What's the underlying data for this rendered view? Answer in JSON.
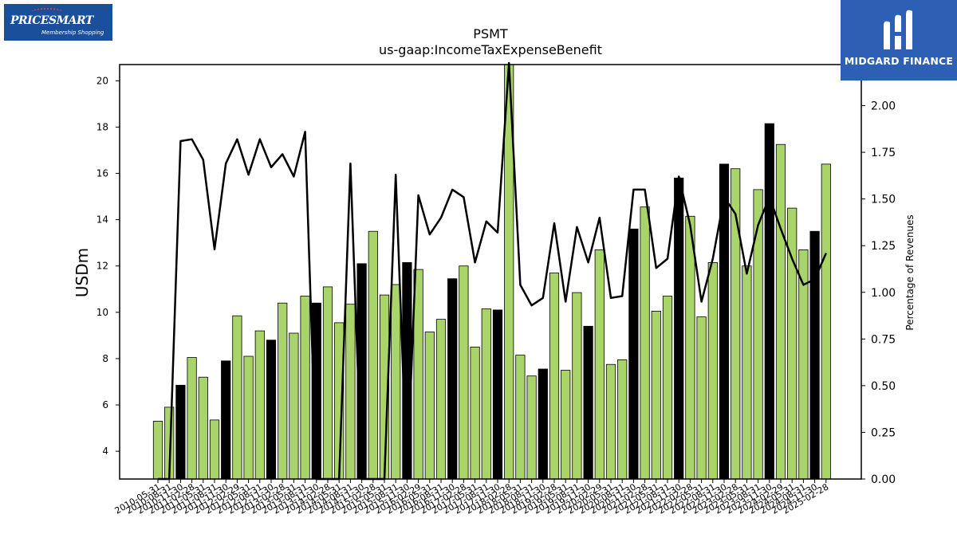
{
  "logos": {
    "left": {
      "brand": "PRICESMART",
      "tagline": "Membership Shopping",
      "colors": {
        "bg": "#1a4f9c",
        "dots": "#e23b3b"
      }
    },
    "right": {
      "name": "MIDGARD FINANCE",
      "icon": "midgard-m-icon",
      "colors": {
        "bg": "#2d5fb5"
      }
    }
  },
  "chart_data": {
    "type": "bar",
    "title": "PSMT",
    "subtitle": "us-gaap:IncomeTaxExpenseBenefit",
    "ylabel": "USDm",
    "y2label": "Percentage of Revenues",
    "ylim": [
      2.8,
      20.7
    ],
    "y2lim": [
      0,
      2.22
    ],
    "yticks": [
      4,
      6,
      8,
      10,
      12,
      14,
      16,
      18,
      20
    ],
    "y2ticks": [
      "0.00",
      "0.25",
      "0.50",
      "0.75",
      "1.00",
      "1.25",
      "1.50",
      "1.75",
      "2.00"
    ],
    "grid": false,
    "colors": {
      "bar": "#a8d46a",
      "bar_highlight": "#000000",
      "line": "#000000"
    },
    "categories": [
      "2010-05-31",
      "2010-08-31",
      "2010-11-30",
      "2011-02-28",
      "2011-05-31",
      "2011-08-31",
      "2011-11-30",
      "2012-02-29",
      "2012-05-31",
      "2012-08-31",
      "2012-11-30",
      "2013-02-28",
      "2013-05-31",
      "2013-08-31",
      "2013-11-30",
      "2014-02-28",
      "2014-05-31",
      "2014-08-31",
      "2014-11-30",
      "2015-02-28",
      "2015-05-31",
      "2015-08-31",
      "2015-11-30",
      "2016-02-29",
      "2016-05-31",
      "2016-08-31",
      "2016-11-30",
      "2017-02-28",
      "2017-05-31",
      "2017-08-31",
      "2017-11-30",
      "2018-02-28",
      "2018-05-31",
      "2018-08-31",
      "2018-11-30",
      "2019-02-28",
      "2019-05-31",
      "2019-08-31",
      "2019-11-30",
      "2020-02-29",
      "2020-05-31",
      "2020-08-31",
      "2020-11-30",
      "2021-02-28",
      "2021-05-31",
      "2021-08-31",
      "2021-11-30",
      "2022-02-28",
      "2022-05-31",
      "2022-08-31",
      "2022-11-30",
      "2023-02-28",
      "2023-05-31",
      "2023-08-31",
      "2023-11-30",
      "2024-02-29",
      "2024-05-31",
      "2024-08-31",
      "2024-11-30",
      "2025-02-28"
    ],
    "series": [
      {
        "type": "bar",
        "values": [
          5.3,
          5.9,
          6.85,
          8.05,
          7.2,
          5.35,
          7.9,
          9.85,
          8.1,
          9.2,
          8.8,
          10.4,
          9.1,
          10.7,
          10.4,
          11.1,
          9.55,
          10.35,
          12.1,
          13.5,
          10.75,
          11.2,
          12.15,
          11.85,
          9.15,
          9.7,
          11.45,
          12.0,
          8.5,
          10.15,
          10.1,
          21.0,
          8.15,
          7.25,
          7.55,
          11.7,
          7.5,
          10.85,
          9.4,
          12.7,
          7.75,
          7.95,
          13.6,
          14.55,
          10.05,
          10.7,
          15.8,
          14.15,
          9.8,
          12.15,
          16.4,
          16.2,
          12.0,
          15.3,
          18.15,
          17.25,
          14.5,
          12.7,
          13.5,
          16.4
        ],
        "highlight": [
          false,
          false,
          true,
          false,
          false,
          false,
          true,
          false,
          false,
          false,
          true,
          false,
          false,
          false,
          true,
          false,
          false,
          false,
          true,
          false,
          false,
          false,
          true,
          false,
          false,
          false,
          true,
          false,
          false,
          false,
          true,
          false,
          false,
          false,
          true,
          false,
          false,
          false,
          true,
          false,
          false,
          false,
          true,
          false,
          false,
          false,
          true,
          false,
          false,
          false,
          true,
          false,
          false,
          false,
          true,
          false,
          false,
          false,
          true,
          false
        ]
      },
      {
        "type": "line",
        "axis": "right",
        "values": [
          0.0,
          0.0,
          1.81,
          1.82,
          1.71,
          1.23,
          1.69,
          1.82,
          1.63,
          1.82,
          1.67,
          1.74,
          1.62,
          1.86,
          0.0,
          0.0,
          0.0,
          1.69,
          0.0,
          0.0,
          0.0,
          1.63,
          0.0,
          1.52,
          1.31,
          1.4,
          1.55,
          1.51,
          1.16,
          1.38,
          1.32,
          2.25,
          1.04,
          0.93,
          0.97,
          1.37,
          0.95,
          1.35,
          1.16,
          1.4,
          0.97,
          0.98,
          1.55,
          1.55,
          1.13,
          1.18,
          1.62,
          1.36,
          0.95,
          1.18,
          1.51,
          1.42,
          1.1,
          1.36,
          1.51,
          1.34,
          1.18,
          1.04,
          1.07,
          1.21
        ]
      }
    ]
  }
}
